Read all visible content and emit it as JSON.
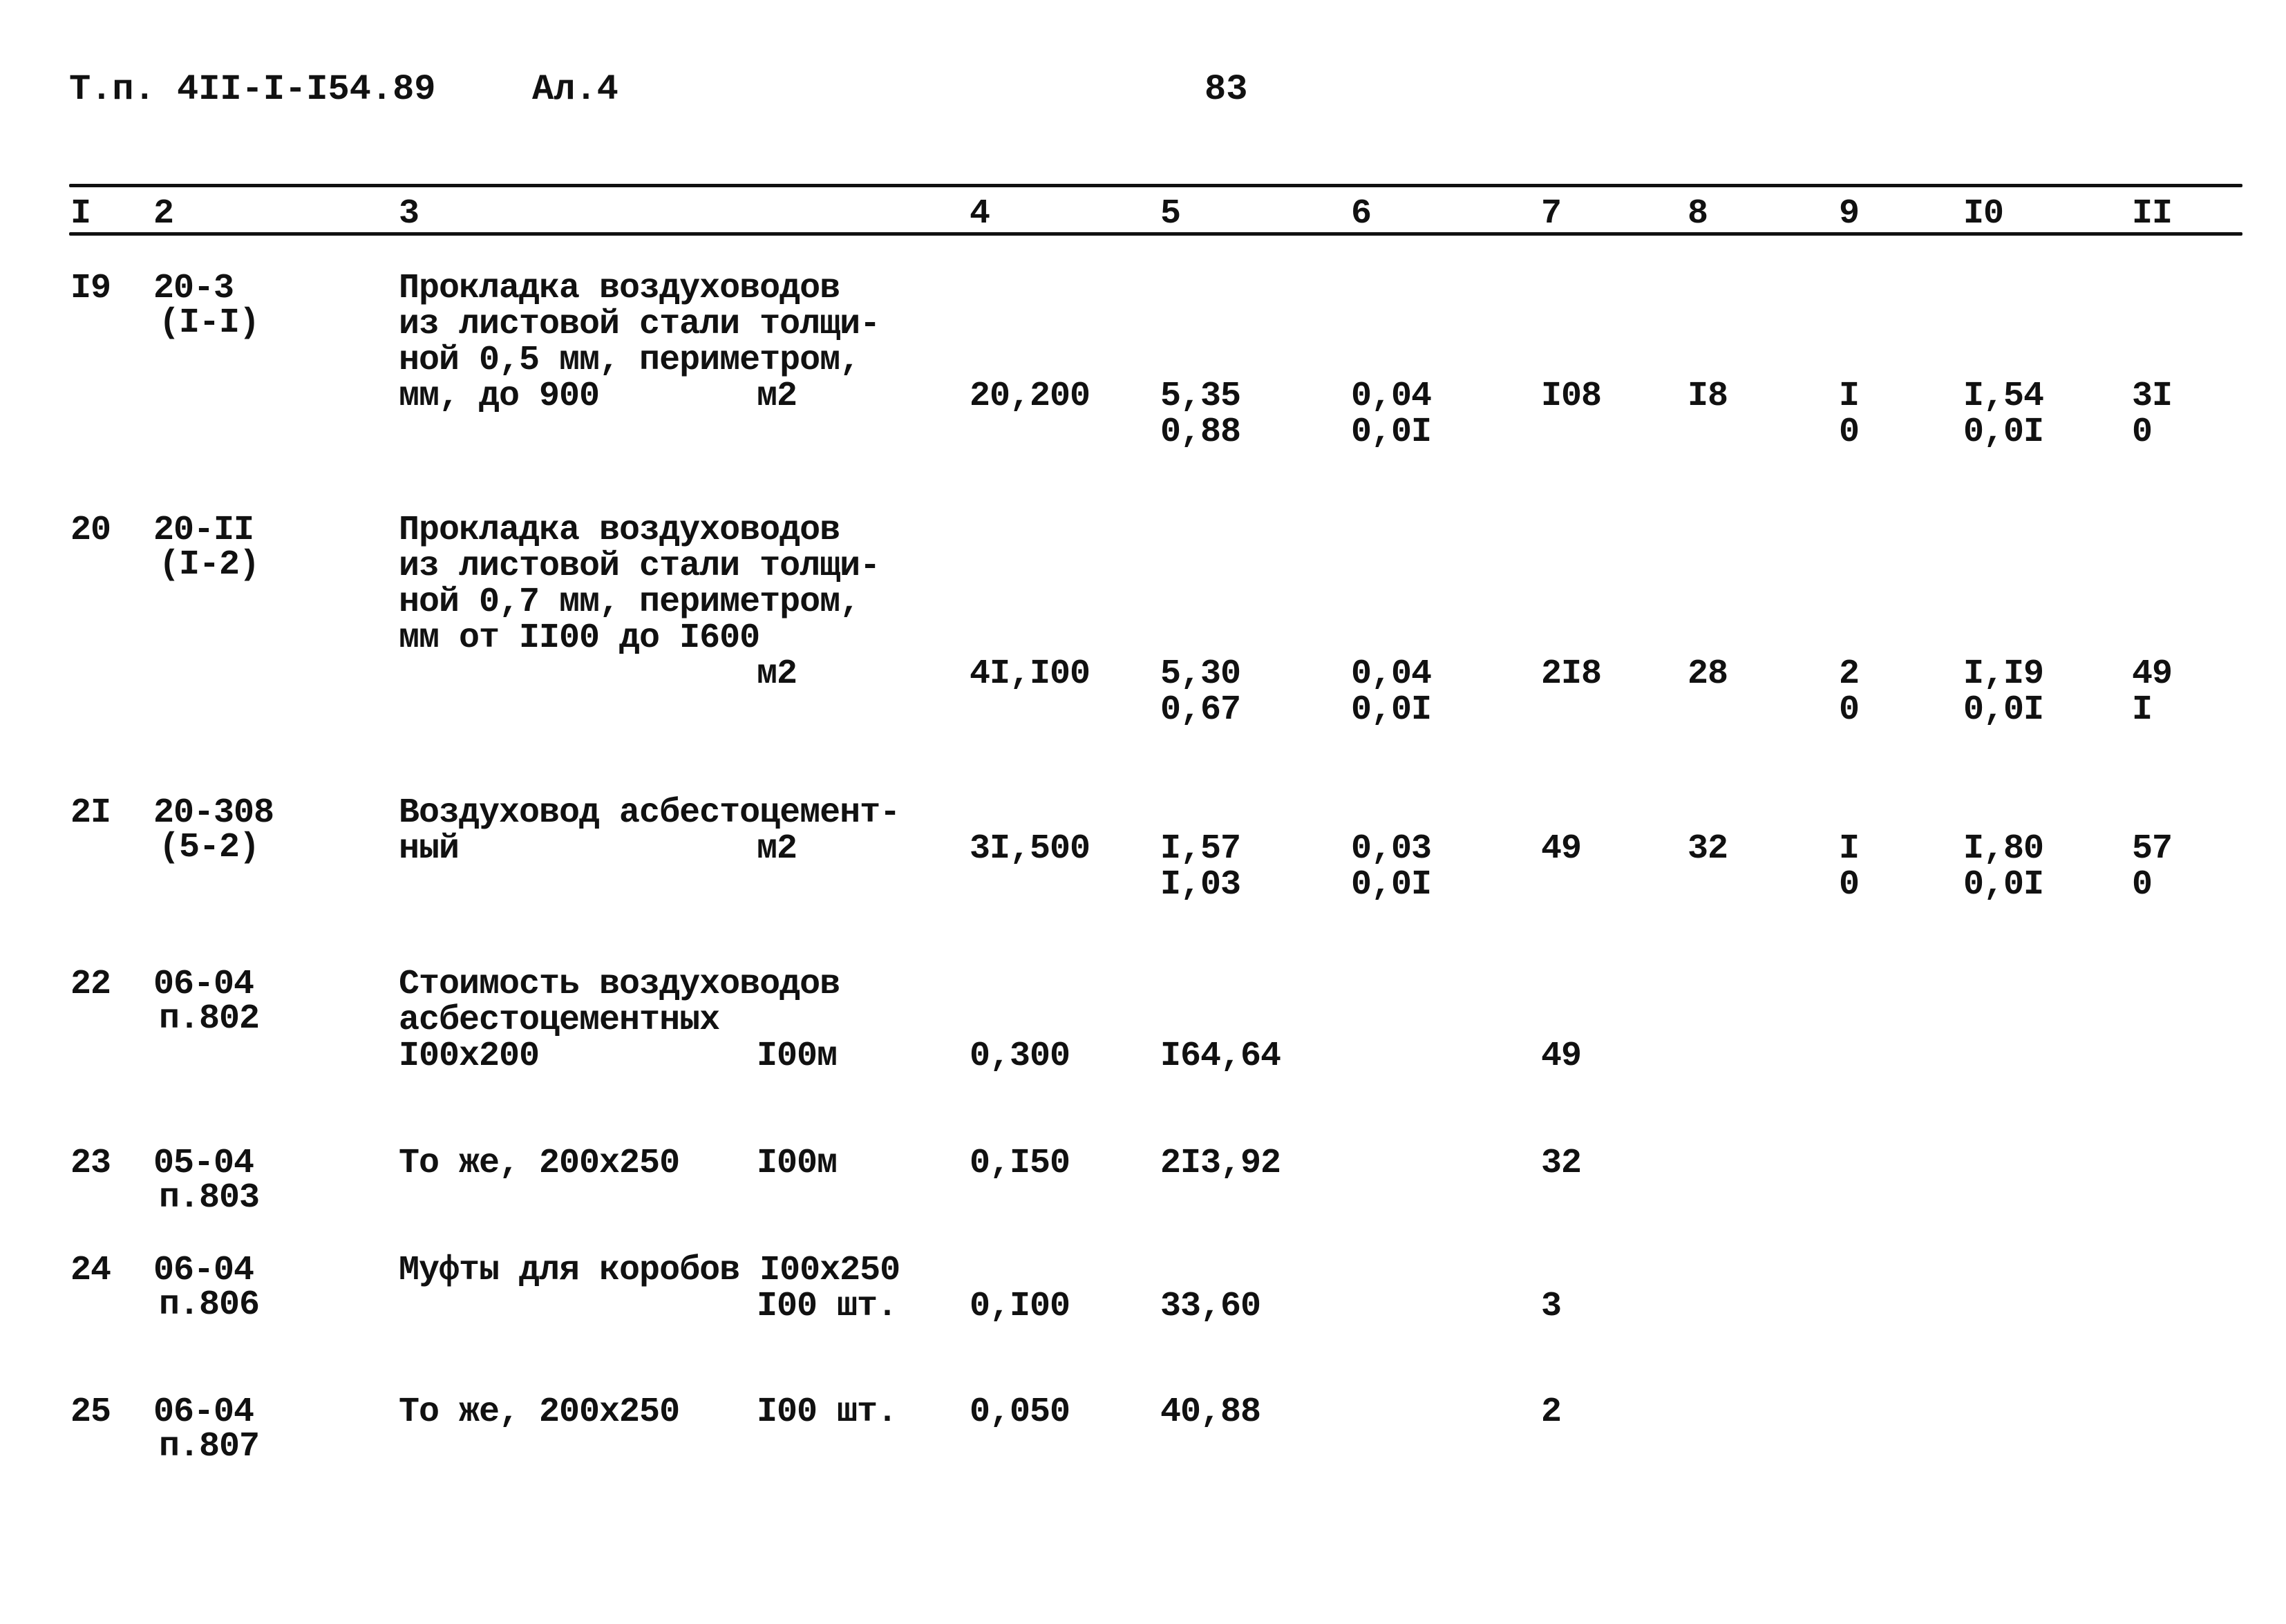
{
  "header": {
    "doc_ref": "Т.п. 4II-I-I54.89",
    "album": "Ал.4",
    "page_number": "83"
  },
  "table": {
    "columns": [
      "I",
      "2",
      "3",
      "4",
      "5",
      "6",
      "7",
      "8",
      "9",
      "I0",
      "II"
    ],
    "rows": [
      {
        "n": "I9",
        "code": [
          "20-3",
          "(I-I)"
        ],
        "desc": [
          "Прокладка воздуховодов",
          "из листовой стали толщи-",
          "ной 0,5 мм, периметром,",
          "мм, до 900"
        ],
        "unit": "м2",
        "qty": "20,200",
        "c5": [
          "5,35",
          "0,88"
        ],
        "c6": [
          "0,04",
          "0,0I"
        ],
        "c7": "I08",
        "c8": "I8",
        "c9": [
          "I",
          "0"
        ],
        "c10": [
          "I,54",
          "0,0I"
        ],
        "c11": [
          "3I",
          "0"
        ]
      },
      {
        "n": "20",
        "code": [
          "20-II",
          "(I-2)"
        ],
        "desc": [
          "Прокладка воздуховодов",
          "из листовой стали толщи-",
          "ной 0,7 мм, периметром,",
          "мм от II00 до I600"
        ],
        "unit": "м2",
        "qty": "4I,I00",
        "c5": [
          "5,30",
          "0,67"
        ],
        "c6": [
          "0,04",
          "0,0I"
        ],
        "c7": "2I8",
        "c8": "28",
        "c9": [
          "2",
          "0"
        ],
        "c10": [
          "I,I9",
          "0,0I"
        ],
        "c11": [
          "49",
          "I"
        ]
      },
      {
        "n": "2I",
        "code": [
          "20-308",
          "(5-2)"
        ],
        "desc": [
          "Воздуховод асбестоцемент-",
          "ный"
        ],
        "unit": "м2",
        "qty": "3I,500",
        "c5": [
          "I,57",
          "I,03"
        ],
        "c6": [
          "0,03",
          "0,0I"
        ],
        "c7": "49",
        "c8": "32",
        "c9": [
          "I",
          "0"
        ],
        "c10": [
          "I,80",
          "0,0I"
        ],
        "c11": [
          "57",
          "0"
        ]
      },
      {
        "n": "22",
        "code": [
          "06-04",
          "п.802"
        ],
        "desc": [
          "Стоимость воздуховодов",
          "асбестоцементных",
          "I00x200"
        ],
        "unit": "I00м",
        "qty": "0,300",
        "c5": [
          "I64,64"
        ],
        "c6": [],
        "c7": "49",
        "c8": "",
        "c9": [],
        "c10": [],
        "c11": []
      },
      {
        "n": "23",
        "code": [
          "05-04",
          "п.803"
        ],
        "desc": [
          "То же, 200x250"
        ],
        "unit": "I00м",
        "qty": "0,I50",
        "c5": [
          "2I3,92"
        ],
        "c6": [],
        "c7": "32",
        "c8": "",
        "c9": [],
        "c10": [],
        "c11": []
      },
      {
        "n": "24",
        "code": [
          "06-04",
          "п.806"
        ],
        "desc": [
          "Муфты для коробов I00x250"
        ],
        "unit": "I00 шт.",
        "qty": "0,I00",
        "c5": [
          "33,60"
        ],
        "c6": [],
        "c7": "3",
        "c8": "",
        "c9": [],
        "c10": [],
        "c11": []
      },
      {
        "n": "25",
        "code": [
          "06-04",
          "п.807"
        ],
        "desc": [
          "То же, 200x250"
        ],
        "unit": "I00 шт.",
        "qty": "0,050",
        "c5": [
          "40,88"
        ],
        "c6": [],
        "c7": "2",
        "c8": "",
        "c9": [],
        "c10": [],
        "c11": []
      }
    ]
  }
}
